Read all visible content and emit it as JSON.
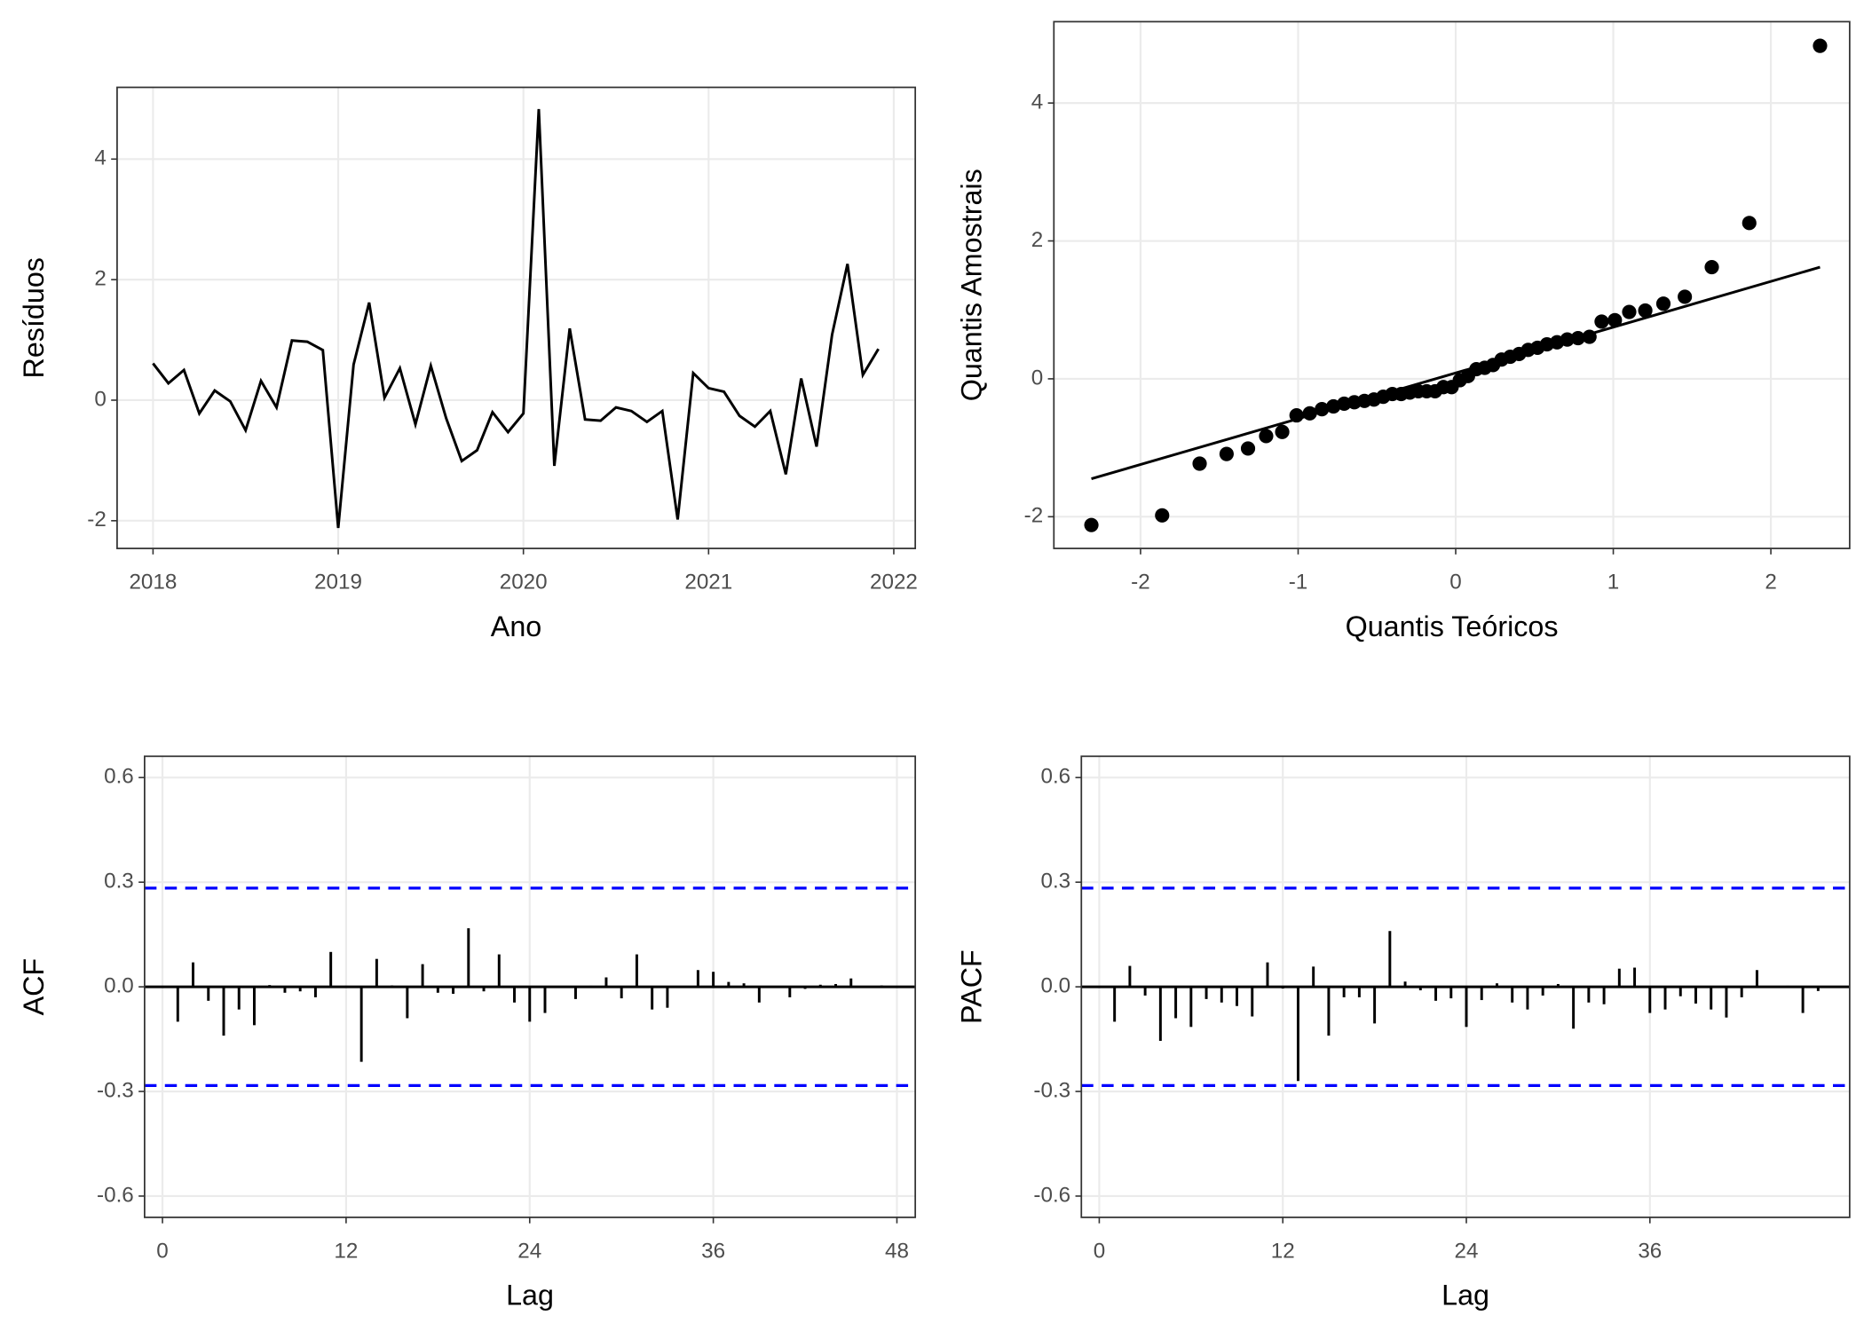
{
  "chart_data": [
    {
      "type": "line",
      "x_label": "Ano",
      "y_label": "Resíduos",
      "grid": true,
      "color": "#000000",
      "xlim": [
        2017.806,
        2022.116
      ],
      "ylim": [
        -2.46,
        5.19
      ],
      "xticks": [
        2018,
        2019,
        2020,
        2021,
        2022
      ],
      "yticks": [
        -2,
        0,
        2,
        4
      ],
      "x": [
        2018,
        2018.083,
        2018.167,
        2018.25,
        2018.333,
        2018.417,
        2018.5,
        2018.583,
        2018.667,
        2018.75,
        2018.833,
        2018.917,
        2019,
        2019.083,
        2019.167,
        2019.25,
        2019.333,
        2019.417,
        2019.5,
        2019.583,
        2019.667,
        2019.75,
        2019.833,
        2019.917,
        2020,
        2020.083,
        2020.167,
        2020.25,
        2020.333,
        2020.417,
        2020.5,
        2020.583,
        2020.667,
        2020.75,
        2020.833,
        2020.917,
        2021,
        2021.083,
        2021.167,
        2021.25,
        2021.333,
        2021.417,
        2021.5,
        2021.583,
        2021.667,
        2021.75,
        2021.833,
        2021.917
      ],
      "values": [
        0.61,
        0.28,
        0.5,
        -0.22,
        0.16,
        -0.02,
        -0.5,
        0.32,
        -0.12,
        0.99,
        0.97,
        0.83,
        -2.12,
        0.59,
        1.62,
        0.04,
        0.53,
        -0.4,
        0.57,
        -0.3,
        -1.01,
        -0.83,
        -0.2,
        -0.53,
        -0.22,
        4.83,
        -1.09,
        1.19,
        -0.32,
        -0.34,
        -0.12,
        -0.18,
        -0.36,
        -0.18,
        -1.98,
        0.45,
        0.2,
        0.14,
        -0.26,
        -0.44,
        -0.18,
        -1.23,
        0.36,
        -0.77,
        1.09,
        2.26,
        0.42,
        0.85
      ]
    },
    {
      "type": "scatter",
      "x_label": "Quantis Teóricos",
      "y_label": "Quantis Amostrais",
      "grid": true,
      "color": "#000000",
      "xlim": [
        -2.55,
        2.5
      ],
      "ylim": [
        -2.46,
        5.18
      ],
      "xticks": [
        -2,
        -1,
        0,
        1,
        2
      ],
      "yticks": [
        -2,
        0,
        2,
        4
      ],
      "points": {
        "x": [
          -2.312,
          -1.863,
          -1.625,
          -1.454,
          -1.318,
          -1.203,
          -1.101,
          -1.01,
          -0.926,
          -0.849,
          -0.776,
          -0.708,
          -0.643,
          -0.579,
          -0.519,
          -0.46,
          -0.402,
          -0.346,
          -0.291,
          -0.237,
          -0.184,
          -0.131,
          -0.078,
          -0.026,
          0.026,
          0.078,
          0.131,
          0.184,
          0.237,
          0.291,
          0.346,
          0.402,
          0.46,
          0.519,
          0.579,
          0.643,
          0.708,
          0.776,
          0.849,
          0.926,
          1.01,
          1.101,
          1.203,
          1.318,
          1.454,
          1.625,
          1.863,
          2.312
        ],
        "y": [
          -2.12,
          -1.98,
          -1.23,
          -1.09,
          -1.01,
          -0.83,
          -0.77,
          -0.53,
          -0.5,
          -0.44,
          -0.4,
          -0.36,
          -0.34,
          -0.32,
          -0.3,
          -0.26,
          -0.22,
          -0.22,
          -0.2,
          -0.18,
          -0.18,
          -0.18,
          -0.12,
          -0.12,
          -0.02,
          0.04,
          0.14,
          0.16,
          0.2,
          0.28,
          0.32,
          0.36,
          0.42,
          0.45,
          0.5,
          0.53,
          0.57,
          0.59,
          0.61,
          0.83,
          0.85,
          0.97,
          0.99,
          1.09,
          1.19,
          1.62,
          2.26,
          4.83
        ]
      },
      "reference_line": {
        "x": [
          -2.312,
          2.312
        ],
        "y": [
          -1.45,
          1.62
        ]
      }
    },
    {
      "type": "bar",
      "x_label": "Lag",
      "y_label": "ACF",
      "grid": true,
      "color": "#000000",
      "significance_color": "#0000ff",
      "xlim": [
        -1.17,
        49.2
      ],
      "ylim": [
        -0.661,
        0.661
      ],
      "xticks": [
        0,
        12,
        24,
        36,
        48
      ],
      "yticks": [
        -0.6,
        -0.3,
        {
          "value": 0,
          "label": "0.0"
        },
        0.3,
        0.6
      ],
      "significance": [
        -0.283,
        0.283
      ],
      "x": [
        1,
        2,
        3,
        4,
        5,
        6,
        7,
        8,
        9,
        10,
        11,
        12,
        13,
        14,
        15,
        16,
        17,
        18,
        19,
        20,
        21,
        22,
        23,
        24,
        25,
        26,
        27,
        28,
        29,
        30,
        31,
        32,
        33,
        34,
        35,
        36,
        37,
        38,
        39,
        40,
        41,
        42,
        43,
        44,
        45,
        46,
        47
      ],
      "values": [
        -0.1,
        0.07,
        -0.04,
        -0.14,
        -0.065,
        -0.11,
        0.005,
        -0.017,
        -0.013,
        -0.03,
        0.1,
        0.003,
        -0.215,
        0.08,
        0.004,
        -0.09,
        0.065,
        -0.017,
        -0.02,
        0.168,
        -0.013,
        0.093,
        -0.045,
        -0.1,
        -0.075,
        0.002,
        -0.035,
        0.003,
        0.027,
        -0.033,
        0.093,
        -0.065,
        -0.06,
        -0.003,
        0.048,
        0.043,
        0.014,
        0.01,
        -0.045,
        0.002,
        -0.03,
        -0.006,
        0.006,
        0.008,
        0.024,
        0.002,
        0.004
      ]
    },
    {
      "type": "bar",
      "x_label": "Lag",
      "y_label": "PACF",
      "grid": true,
      "color": "#000000",
      "significance_color": "#0000ff",
      "xlim": [
        -1.17,
        49.06
      ],
      "ylim": [
        -0.661,
        0.661
      ],
      "xticks": [
        0,
        12,
        24,
        36
      ],
      "yticks": [
        -0.6,
        -0.3,
        {
          "value": 0,
          "label": "0.0"
        },
        0.3,
        0.6
      ],
      "significance": [
        -0.283,
        0.283
      ],
      "x": [
        1,
        2,
        3,
        4,
        5,
        6,
        7,
        8,
        9,
        10,
        11,
        12,
        13,
        14,
        15,
        16,
        17,
        18,
        19,
        20,
        21,
        22,
        23,
        24,
        25,
        26,
        27,
        28,
        29,
        30,
        31,
        32,
        33,
        34,
        35,
        36,
        37,
        38,
        39,
        40,
        41,
        42,
        43,
        44,
        45,
        46,
        47
      ],
      "values": [
        -0.1,
        0.06,
        -0.025,
        -0.155,
        -0.09,
        -0.115,
        -0.035,
        -0.045,
        -0.055,
        -0.085,
        0.07,
        -0.005,
        -0.27,
        0.058,
        -0.14,
        -0.03,
        -0.03,
        -0.105,
        0.16,
        0.015,
        -0.01,
        -0.04,
        -0.033,
        -0.115,
        -0.038,
        0.01,
        -0.045,
        -0.065,
        -0.025,
        0.008,
        -0.12,
        -0.045,
        -0.05,
        0.052,
        0.055,
        -0.075,
        -0.065,
        -0.027,
        -0.048,
        -0.065,
        -0.088,
        -0.03,
        0.048,
        -0.003,
        0.003,
        -0.075,
        -0.012
      ]
    }
  ]
}
